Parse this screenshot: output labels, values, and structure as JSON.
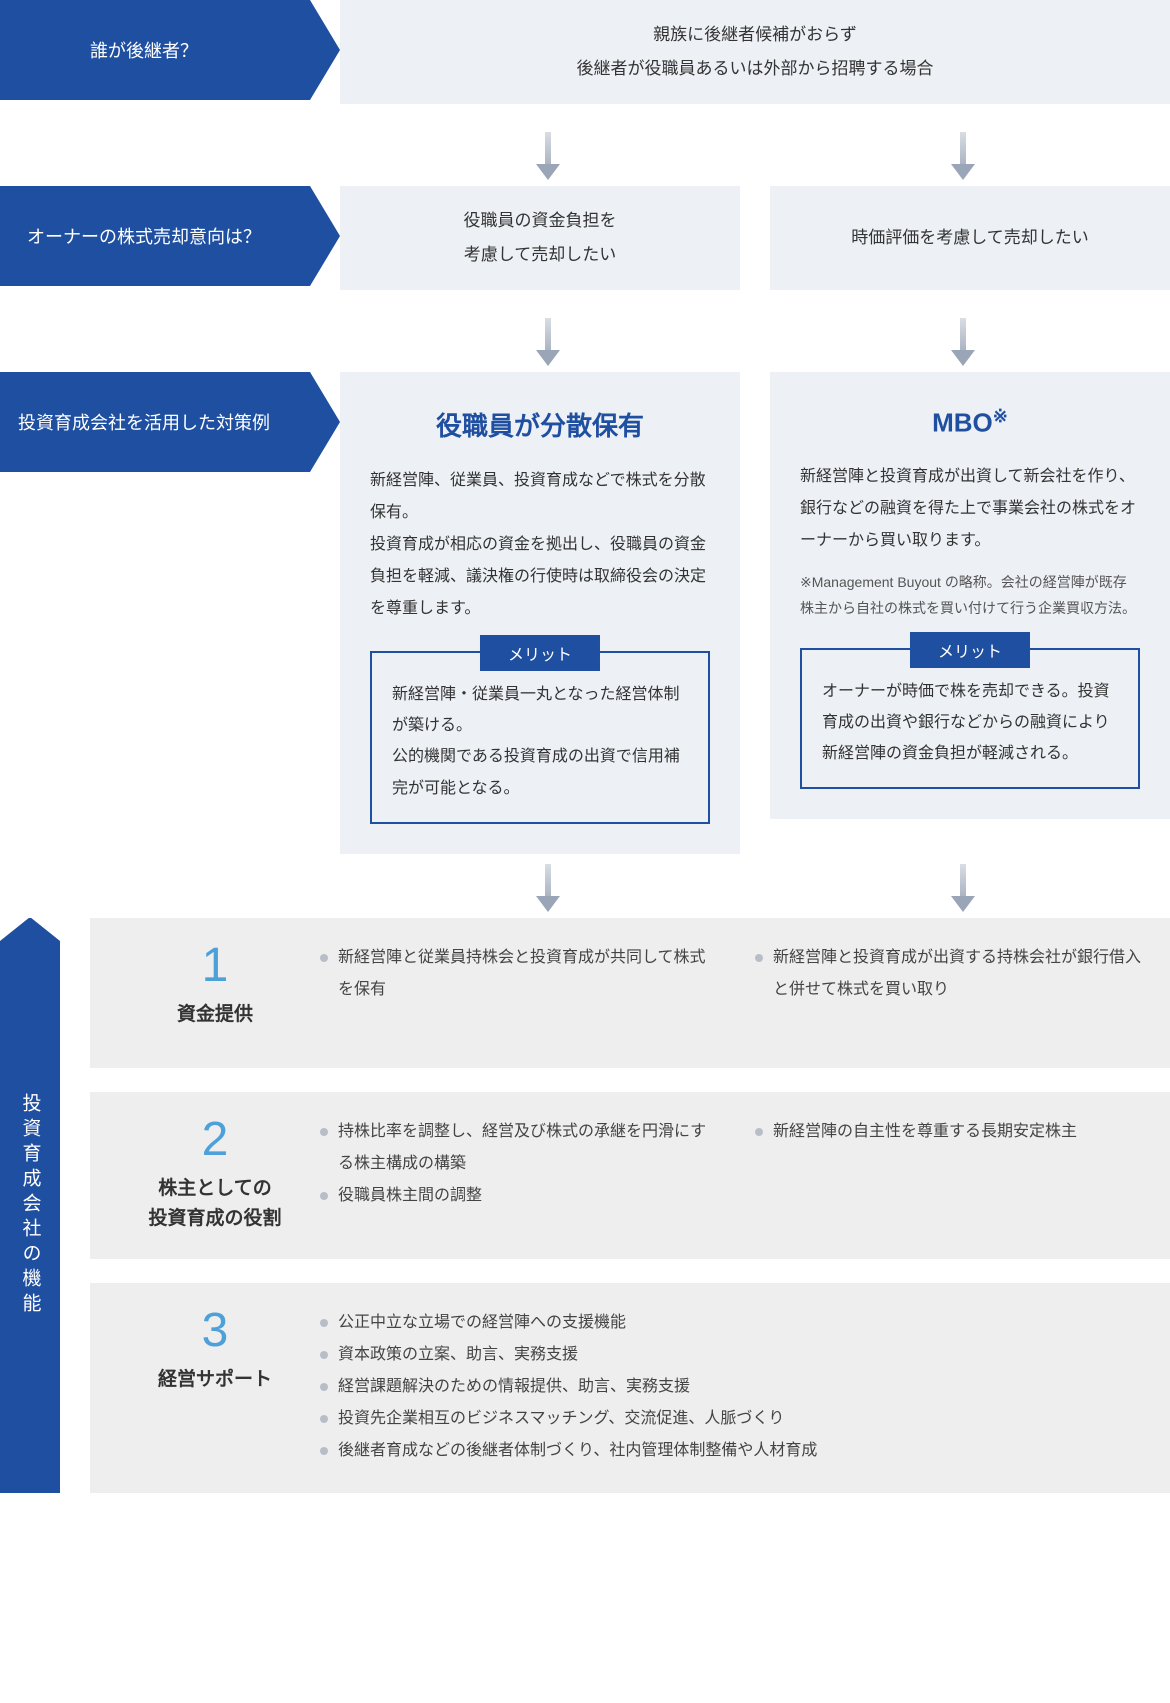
{
  "colors": {
    "primary_blue": "#1f4fa0",
    "light_blue_bg": "#edf0f5",
    "light_gray_bg": "#eeeeee",
    "accent_number": "#4ea0d9",
    "bullet": "#b8bec8",
    "text": "#333333"
  },
  "q1": {
    "label": "誰が後継者？",
    "answer_line1": "親族に後継者候補がおらず",
    "answer_line2": "後継者が役職員あるいは外部から招聘する場合"
  },
  "q2": {
    "label": "オーナーの株式売却意向は？",
    "left_line1": "役職員の資金負担を",
    "left_line2": "考慮して売却したい",
    "right": "時価評価を考慮して売却したい"
  },
  "q3_label": "投資育成会社を活用した対策例",
  "panel_left": {
    "title": "役職員が分散保有",
    "body": "新経営陣、従業員、投資育成などで株式を分散保有。\n投資育成が相応の資金を拠出し、役職員の資金負担を軽減、議決権の行使時は取締役会の決定を尊重します。",
    "merit_label": "メリット",
    "merit": "新経営陣・従業員一丸となった経営体制が築ける。\n公的機関である投資育成の出資で信用補完が可能となる。"
  },
  "panel_right": {
    "title": "MBO",
    "title_sup": "※",
    "body": "新経営陣と投資育成が出資して新会社を作り、銀行などの融資を得た上で事業会社の株式をオーナーから買い取ります。",
    "note": "※Management Buyout の略称。会社の経営陣が既存株主から自社の株式を買い付けて行う企業買収方法。",
    "merit_label": "メリット",
    "merit": "オーナーが時価で株を売却できる。投資育成の出資や銀行などからの融資により新経営陣の資金負担が軽減される。"
  },
  "functions_label": "投資育成会社の機能",
  "func1": {
    "num": "1",
    "name": "資金提供",
    "left": [
      "新経営陣と従業員持株会と投資育成が共同して株式を保有"
    ],
    "right": [
      "新経営陣と投資育成が出資する持株会社が銀行借入と併せて株式を買い取り"
    ]
  },
  "func2": {
    "num": "2",
    "name": "株主としての\n投資育成の役割",
    "left": [
      "持株比率を調整し、経営及び株式の承継を円滑にする株主構成の構築",
      "役職員株主間の調整"
    ],
    "right": [
      "新経営陣の自主性を尊重する長期安定株主"
    ]
  },
  "func3": {
    "num": "3",
    "name": "経営サポート",
    "items": [
      "公正中立な立場での経営陣への支援機能",
      "資本政策の立案、助言、実務支援",
      "経営課題解決のための情報提供、助言、実務支援",
      "投資先企業相互のビジネスマッチング、交流促進、人脈づくり",
      "後継者育成などの後継者体制づくり、社内管理体制整備や人材育成"
    ]
  }
}
